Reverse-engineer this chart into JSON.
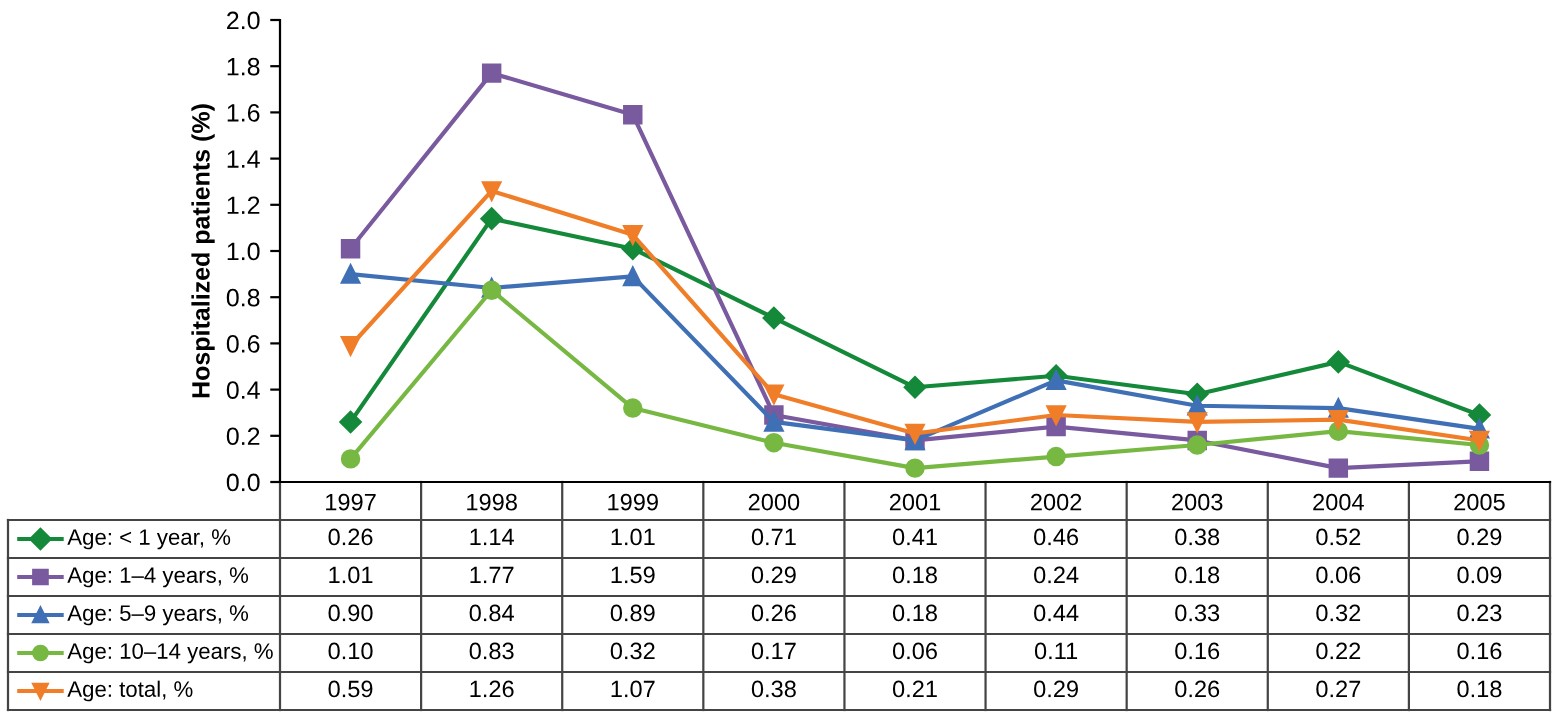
{
  "chart_data": {
    "type": "line",
    "ylabel": "Hospitalized patients (%)",
    "categories": [
      "1997",
      "1998",
      "1999",
      "2000",
      "2001",
      "2002",
      "2003",
      "2004",
      "2005"
    ],
    "ylim": [
      0,
      2.0
    ],
    "yticks": [
      {
        "value": 0,
        "label": "0.0"
      },
      {
        "value": 0.2,
        "label": "0.2"
      },
      {
        "value": 0.4,
        "label": "0.4"
      },
      {
        "value": 0.6,
        "label": "0.6"
      },
      {
        "value": 0.8,
        "label": "0.8"
      },
      {
        "value": 1.0,
        "label": "1.0"
      },
      {
        "value": 1.2,
        "label": "1.2"
      },
      {
        "value": 1.4,
        "label": "1.4"
      },
      {
        "value": 1.6,
        "label": "1.6"
      },
      {
        "value": 1.8,
        "label": "1.8"
      },
      {
        "value": 2.0,
        "label": "2.0"
      }
    ],
    "grid": false,
    "legend": "bottom",
    "line_style": "solid",
    "series": [
      {
        "name": "Age: < 1 year, %",
        "color": "#15893a",
        "marker": "diamond",
        "values": [
          0.26,
          1.14,
          1.01,
          0.71,
          0.41,
          0.46,
          0.38,
          0.52,
          0.29
        ],
        "value_labels": [
          "0.26",
          "1.14",
          "1.01",
          "0.71",
          "0.41",
          "0.46",
          "0.38",
          "0.52",
          "0.29"
        ]
      },
      {
        "name": "Age: 1–4 years, %",
        "color": "#7a5a9e",
        "marker": "square",
        "values": [
          1.01,
          1.77,
          1.59,
          0.29,
          0.18,
          0.24,
          0.18,
          0.06,
          0.09
        ],
        "value_labels": [
          "1.01",
          "1.77",
          "1.59",
          "0.29",
          "0.18",
          "0.24",
          "0.18",
          "0.06",
          "0.09"
        ]
      },
      {
        "name": "Age: 5–9 years, %",
        "color": "#3f6fb5",
        "marker": "triangle",
        "values": [
          0.9,
          0.84,
          0.89,
          0.26,
          0.18,
          0.44,
          0.33,
          0.32,
          0.23
        ],
        "value_labels": [
          "0.90",
          "0.84",
          "0.89",
          "0.26",
          "0.18",
          "0.44",
          "0.33",
          "0.32",
          "0.23"
        ]
      },
      {
        "name": "Age: 10–14 years, %",
        "color": "#77b843",
        "marker": "circle",
        "values": [
          0.1,
          0.83,
          0.32,
          0.17,
          0.06,
          0.11,
          0.16,
          0.22,
          0.16
        ],
        "value_labels": [
          "0.10",
          "0.83",
          "0.32",
          "0.17",
          "0.06",
          "0.11",
          "0.16",
          "0.22",
          "0.16"
        ]
      },
      {
        "name": "Age: total, %",
        "color": "#f07d28",
        "marker": "triangle_down",
        "values": [
          0.59,
          1.26,
          1.07,
          0.38,
          0.21,
          0.29,
          0.26,
          0.27,
          0.18
        ],
        "value_labels": [
          "0.59",
          "1.26",
          "1.07",
          "0.38",
          "0.21",
          "0.29",
          "0.26",
          "0.27",
          "0.18"
        ]
      }
    ]
  }
}
